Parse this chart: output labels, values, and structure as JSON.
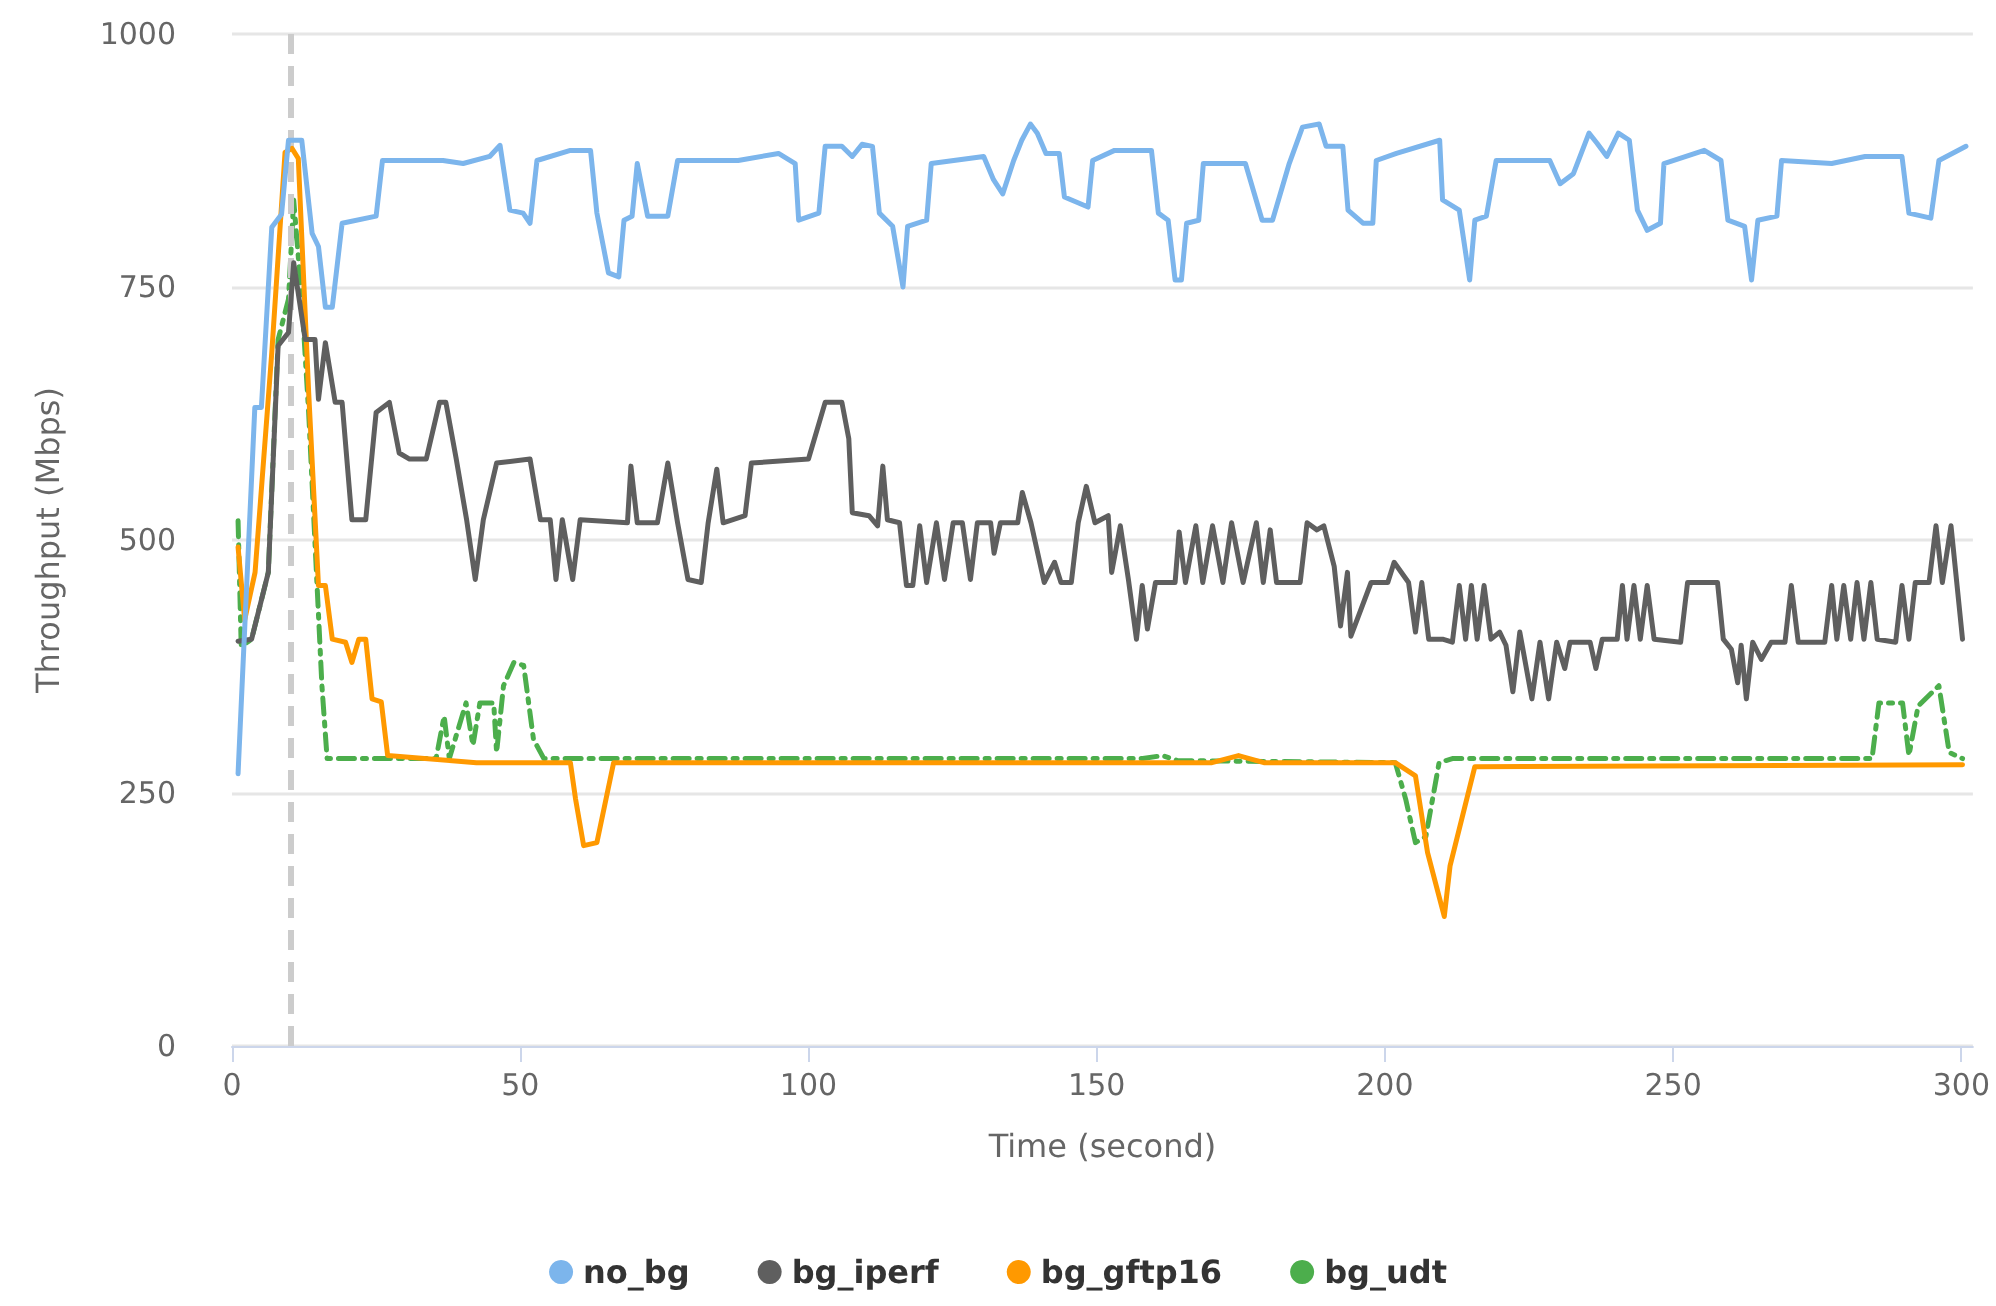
{
  "chart_data": {
    "type": "line",
    "xlabel": "Time (second)",
    "ylabel": "Throughput (Mbps)",
    "xlim": [
      0,
      302
    ],
    "xticks": [
      0,
      50,
      100,
      150,
      200,
      250,
      300
    ],
    "ylim": [
      0,
      1000
    ],
    "yticks": [
      0,
      250,
      500,
      750,
      1000
    ],
    "grid": "y",
    "legend": "bottom",
    "marker": "none",
    "ref_lines": [
      {
        "axis": "x",
        "value": 10,
        "label": null,
        "color": "#cccccc",
        "line_style": "dashed"
      }
    ],
    "series": [
      {
        "name": "no_bg",
        "color": "#7cb5ec",
        "line_style": "solid",
        "x": [
          1.05,
          3.96,
          5.1,
          6.9,
          8.6,
          9.8,
          12.1,
          13.9,
          15.0,
          16.2,
          17.4,
          19.1,
          25.0,
          26.1,
          36.6,
          40.1,
          44.7,
          46.5,
          48.2,
          50.5,
          51.7,
          52.9,
          58.7,
          62.2,
          63.3,
          65.3,
          67.1,
          68.0,
          69.4,
          70.3,
          72.1,
          75.6,
          77.3,
          87.8,
          94.8,
          97.7,
          98.3,
          101.8,
          102.9,
          105.8,
          107.6,
          109.3,
          111.1,
          112.3,
          114.6,
          116.4,
          117.2,
          120.5,
          121.3,
          130.4,
          132.1,
          133.7,
          135.6,
          137.0,
          138.5,
          139.7,
          141.2,
          143.5,
          144.4,
          148.5,
          149.3,
          153.1,
          159.5,
          160.7,
          162.4,
          163.6,
          164.7,
          165.6,
          167.7,
          168.5,
          175.8,
          178.7,
          180.5,
          183.4,
          185.7,
          188.6,
          189.8,
          192.7,
          193.6,
          196.2,
          197.9,
          198.5,
          202.0,
          209.5,
          210.0,
          212.9,
          214.7,
          215.6,
          217.6,
          219.3,
          225.7,
          228.6,
          230.4,
          232.7,
          235.4,
          236.8,
          238.5,
          240.5,
          242.4,
          243.8,
          245.5,
          247.8,
          248.4,
          255.4,
          258.3,
          259.5,
          262.4,
          263.6,
          264.7,
          268.0,
          268.8,
          277.5,
          283.3,
          289.7,
          290.9,
          294.7,
          296.1,
          300.8
        ],
        "values": [
          269,
          631,
          631,
          809,
          822,
          895,
          895,
          803,
          790,
          730,
          730,
          813,
          820,
          875,
          875,
          872,
          879,
          890,
          826,
          823,
          813,
          875,
          885,
          885,
          823,
          764,
          760,
          816,
          820,
          872,
          820,
          820,
          875,
          875,
          882,
          872,
          816,
          823,
          889,
          889,
          879,
          891,
          889,
          823,
          810,
          750,
          810,
          816,
          872,
          879,
          856,
          842,
          875,
          895,
          911,
          902,
          882,
          882,
          839,
          829,
          875,
          885,
          885,
          823,
          816,
          757,
          757,
          813,
          816,
          872,
          872,
          816,
          816,
          872,
          908,
          911,
          889,
          889,
          826,
          813,
          813,
          875,
          882,
          895,
          836,
          826,
          757,
          816,
          820,
          875,
          875,
          875,
          852,
          862,
          902,
          892,
          879,
          902,
          895,
          826,
          806,
          813,
          872,
          885,
          875,
          816,
          810,
          757,
          816,
          820,
          875,
          872,
          879,
          879,
          823,
          818,
          875,
          889
        ]
      },
      {
        "name": "bg_iperf",
        "color": "#5f5f5f",
        "line_style": "solid",
        "x": [
          1.05,
          3.4,
          6.3,
          8.0,
          9.8,
          10.7,
          12.7,
          14.4,
          15.0,
          16.2,
          17.9,
          19.1,
          20.8,
          23.2,
          25.0,
          27.3,
          29.0,
          30.8,
          33.7,
          36.0,
          37.1,
          38.9,
          40.7,
          42.2,
          43.6,
          45.9,
          51.7,
          53.5,
          55.2,
          56.2,
          57.3,
          59.1,
          60.4,
          68.6,
          69.2,
          70.3,
          73.8,
          75.6,
          77.3,
          79.1,
          81.4,
          82.6,
          84.1,
          85.2,
          89.0,
          90.1,
          100.0,
          102.9,
          105.8,
          107.0,
          107.6,
          110.5,
          112.0,
          112.9,
          113.7,
          115.8,
          117.0,
          118.1,
          119.3,
          120.5,
          122.2,
          123.6,
          125.1,
          126.7,
          128.1,
          129.3,
          131.6,
          132.2,
          133.3,
          136.3,
          137.1,
          138.6,
          140.9,
          142.7,
          143.8,
          145.6,
          146.8,
          148.2,
          149.7,
          152.0,
          152.6,
          154.1,
          155.5,
          156.9,
          157.9,
          158.8,
          160.2,
          163.6,
          164.3,
          165.4,
          167.2,
          168.4,
          170.1,
          171.9,
          173.4,
          175.4,
          177.7,
          178.9,
          180.1,
          181.2,
          185.3,
          186.5,
          188.2,
          189.4,
          191.2,
          192.3,
          193.5,
          194.1,
          197.6,
          200.5,
          201.6,
          204.1,
          205.3,
          206.4,
          207.6,
          210.0,
          211.7,
          212.9,
          214.0,
          215.0,
          216.0,
          217.2,
          218.4,
          219.9,
          221.0,
          222.2,
          223.4,
          225.5,
          226.9,
          228.4,
          229.8,
          231.2,
          232.1,
          235.6,
          236.6,
          237.7,
          240.3,
          241.2,
          242.0,
          243.2,
          244.3,
          245.5,
          246.7,
          251.3,
          252.5,
          257.7,
          258.7,
          260.1,
          261.2,
          261.8,
          262.7,
          263.8,
          265.3,
          267.0,
          269.4,
          270.5,
          271.7,
          276.3,
          277.5,
          278.4,
          279.6,
          280.8,
          281.9,
          283.1,
          284.3,
          285.4,
          288.6,
          289.7,
          290.9,
          292.0,
          294.4,
          295.6,
          296.7,
          298.2,
          300.2
        ],
        "values": [
          400,
          402,
          468,
          692,
          705,
          774,
          698,
          698,
          639,
          695,
          636,
          636,
          520,
          520,
          626,
          636,
          586,
          580,
          580,
          636,
          636,
          580,
          520,
          461,
          520,
          576,
          580,
          520,
          520,
          461,
          520,
          461,
          520,
          517,
          573,
          517,
          517,
          576,
          517,
          461,
          458,
          517,
          570,
          517,
          524,
          576,
          580,
          636,
          636,
          600,
          527,
          524,
          514,
          573,
          520,
          517,
          455,
          455,
          514,
          458,
          517,
          461,
          517,
          517,
          461,
          517,
          517,
          487,
          517,
          517,
          547,
          517,
          458,
          478,
          458,
          458,
          517,
          553,
          517,
          524,
          468,
          514,
          461,
          402,
          455,
          412,
          458,
          458,
          508,
          458,
          514,
          458,
          514,
          458,
          517,
          458,
          517,
          458,
          510,
          458,
          458,
          517,
          510,
          514,
          474,
          415,
          468,
          405,
          458,
          458,
          478,
          458,
          409,
          458,
          402,
          402,
          399,
          455,
          402,
          455,
          402,
          455,
          402,
          409,
          396,
          350,
          409,
          343,
          399,
          343,
          399,
          373,
          399,
          399,
          373,
          402,
          402,
          455,
          402,
          455,
          402,
          455,
          402,
          399,
          458,
          458,
          402,
          392,
          359,
          396,
          343,
          399,
          382,
          399,
          399,
          455,
          399,
          399,
          455,
          402,
          455,
          402,
          458,
          402,
          458,
          402,
          399,
          455,
          402,
          458,
          458,
          514,
          458,
          514,
          402
        ]
      },
      {
        "name": "bg_gftp16",
        "color": "#ff9900",
        "line_style": "solid",
        "x": [
          1.05,
          2.2,
          4.0,
          6.9,
          9.2,
          10.4,
          11.5,
          13.3,
          15.0,
          16.2,
          17.4,
          19.7,
          20.8,
          22.0,
          23.2,
          24.3,
          25.9,
          27.0,
          42.4,
          58.7,
          59.6,
          61.0,
          63.3,
          65.1,
          66.2,
          150.0,
          170.0,
          174.6,
          179.0,
          201.8,
          205.3,
          207.4,
          210.3,
          211.3,
          215.6,
          300.2
        ],
        "values": [
          493,
          421,
          468,
          685,
          883,
          887,
          877,
          646,
          455,
          455,
          402,
          399,
          379,
          402,
          402,
          343,
          340,
          287,
          280,
          280,
          244,
          198,
          201,
          250,
          280,
          280,
          280,
          287,
          280,
          280,
          267,
          191,
          128,
          178,
          276,
          278
        ]
      },
      {
        "name": "bg_udt",
        "color": "#4cae4c",
        "line_style": "dashed",
        "x": [
          1.05,
          1.6,
          3.4,
          6.3,
          8.0,
          9.8,
          10.7,
          12.1,
          13.3,
          15.6,
          16.5,
          35.4,
          36.8,
          37.7,
          40.6,
          41.8,
          43.0,
          45.4,
          45.9,
          47.1,
          48.9,
          50.6,
          52.3,
          54.1,
          77.3,
          158.0,
          161.4,
          164.0,
          201.8,
          203.6,
          205.3,
          207.1,
          209.4,
          211.7,
          284.5,
          285.7,
          289.8,
          290.9,
          292.5,
          296.1,
          297.9,
          300.2
        ],
        "values": [
          519,
          395,
          402,
          468,
          698,
          738,
          836,
          738,
          626,
          356,
          284,
          284,
          326,
          284,
          339,
          297,
          339,
          339,
          290,
          356,
          379,
          376,
          303,
          284,
          284,
          284,
          287,
          282,
          280,
          244,
          201,
          207,
          280,
          284,
          284,
          339,
          339,
          287,
          336,
          356,
          290,
          284
        ]
      }
    ]
  }
}
